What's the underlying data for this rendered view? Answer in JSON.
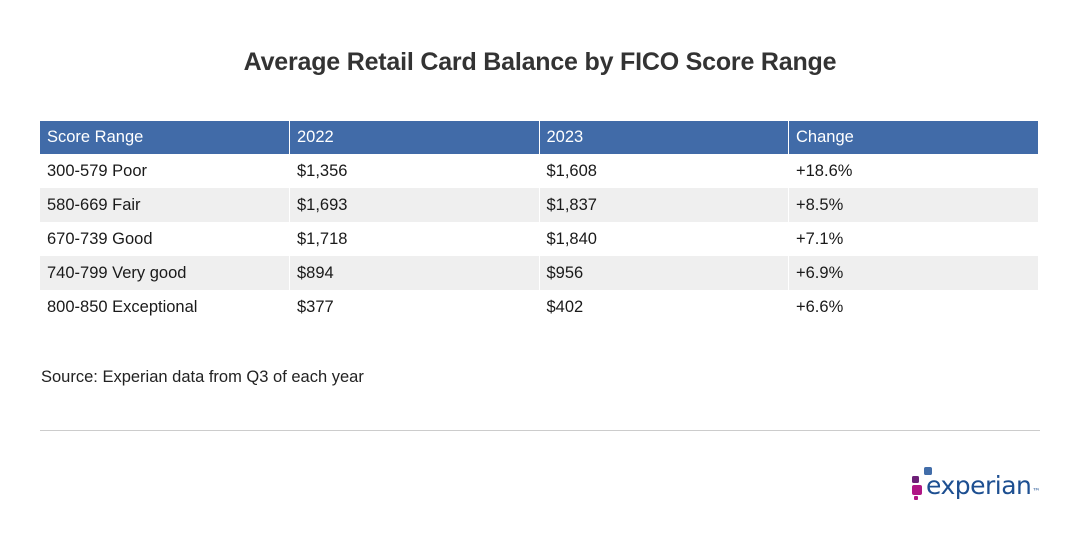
{
  "title": "Average Retail Card Balance by FICO Score Range",
  "source": "Source: Experian data from Q3 of each year",
  "logo": {
    "text": "experian",
    "tm": "™",
    "colors": [
      "#1d4f91",
      "#af1685",
      "#6d2077",
      "#426da9"
    ]
  },
  "chart_data": {
    "type": "table",
    "title": "Average Retail Card Balance by FICO Score Range",
    "columns": [
      "Score Range",
      "2022",
      "2023",
      "Change"
    ],
    "rows": [
      [
        "300-579 Poor",
        "$1,356",
        "$1,608",
        "+18.6%"
      ],
      [
        "580-669 Fair",
        "$1,693",
        "$1,837",
        "+8.5%"
      ],
      [
        "670-739 Good",
        "$1,718",
        "$1,840",
        "+7.1%"
      ],
      [
        "740-799 Very good",
        "$894",
        "$956",
        "+6.9%"
      ],
      [
        "800-850 Exceptional",
        "$377",
        "$402",
        "+6.6%"
      ]
    ],
    "header_color": "#416ba8",
    "stripe_color": "#efefef"
  }
}
